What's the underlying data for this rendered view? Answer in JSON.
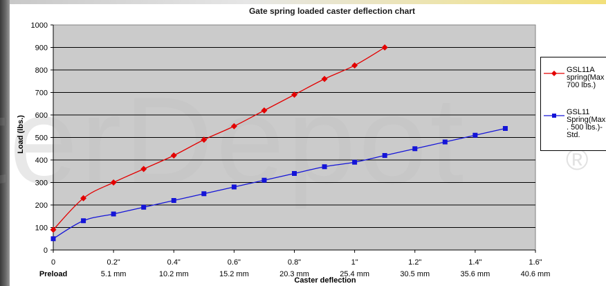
{
  "watermark": {
    "text": "terDepot",
    "reg_mark": "®"
  },
  "chart_data": {
    "type": "line",
    "title": "Gate spring loaded caster deflection chart",
    "xlabel": "Caster deflection",
    "ylabel": "Load (lbs.)",
    "xlim": [
      0,
      1.6
    ],
    "ylim": [
      0,
      1000
    ],
    "y_ticks": [
      0,
      100,
      200,
      300,
      400,
      500,
      600,
      700,
      800,
      900,
      1000
    ],
    "x_tick_labels": [
      {
        "x": 0,
        "inch": "0",
        "mm": "Preload"
      },
      {
        "x": 0.2,
        "inch": "0.2\"",
        "mm": "5.1 mm"
      },
      {
        "x": 0.4,
        "inch": "0.4\"",
        "mm": "10.2 mm"
      },
      {
        "x": 0.6,
        "inch": "0.6\"",
        "mm": "15.2 mm"
      },
      {
        "x": 0.8,
        "inch": "0.8\"",
        "mm": "20.3 mm"
      },
      {
        "x": 1.0,
        "inch": "1\"",
        "mm": "25.4 mm"
      },
      {
        "x": 1.2,
        "inch": "1.2\"",
        "mm": "30.5 mm"
      },
      {
        "x": 1.4,
        "inch": "1.4\"",
        "mm": "35.6 mm"
      },
      {
        "x": 1.6,
        "inch": "1.6\"",
        "mm": "40.6 mm"
      }
    ],
    "grid": true,
    "legend_position": "right",
    "series": [
      {
        "name": "GSL11A spring(Max 700 lbs.)",
        "color": "#e30000",
        "marker": "diamond",
        "x": [
          0,
          0.1,
          0.2,
          0.3,
          0.4,
          0.5,
          0.6,
          0.7,
          0.8,
          0.9,
          1.0,
          1.1
        ],
        "y": [
          90,
          230,
          300,
          360,
          420,
          490,
          550,
          620,
          690,
          760,
          820,
          900
        ]
      },
      {
        "name": "GSL11 Spring(Max . 500 lbs.)-Std.",
        "color": "#1414d8",
        "marker": "square",
        "x": [
          0,
          0.1,
          0.2,
          0.3,
          0.4,
          0.5,
          0.6,
          0.7,
          0.8,
          0.9,
          1.0,
          1.1,
          1.2,
          1.3,
          1.4,
          1.5
        ],
        "y": [
          50,
          130,
          160,
          190,
          220,
          250,
          280,
          310,
          340,
          370,
          390,
          420,
          450,
          480,
          510,
          540
        ]
      }
    ]
  },
  "legend": {
    "items": [
      {
        "lines": [
          "GSL11A",
          "spring(Max",
          "700 lbs.)"
        ]
      },
      {
        "lines": [
          "GSL11",
          "Spring(Max",
          ". 500 lbs.)-",
          "Std."
        ]
      }
    ]
  }
}
